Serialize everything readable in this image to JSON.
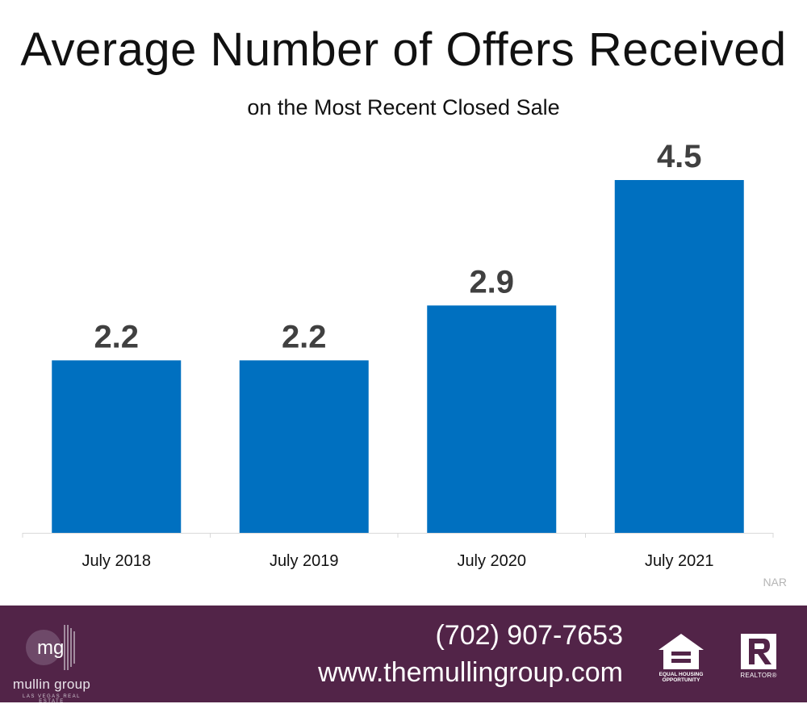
{
  "chart_data": {
    "type": "bar",
    "title": "Average Number of Offers Received",
    "subtitle": "on the Most Recent Closed Sale",
    "categories": [
      "July 2018",
      "July 2019",
      "July 2020",
      "July 2021"
    ],
    "values": [
      2.2,
      2.2,
      2.9,
      4.5
    ],
    "data_labels": [
      "2.2",
      "2.2",
      "2.9",
      "4.5"
    ],
    "ylim": [
      0,
      5
    ],
    "grid": false,
    "legend": "none",
    "bar_color": "#0070C0",
    "label_color": "#404040",
    "source": "NAR"
  },
  "footer": {
    "phone": "(702) 907-7653",
    "website": "www.themullingroup.com",
    "background": "#522448",
    "logo": {
      "mark": "mg",
      "name": "mullin group",
      "tagline": "LAS VEGAS REAL ESTATE"
    },
    "badges": {
      "equal_housing": "EQUAL HOUSING OPPORTUNITY",
      "realtor": "REALTOR®"
    }
  }
}
